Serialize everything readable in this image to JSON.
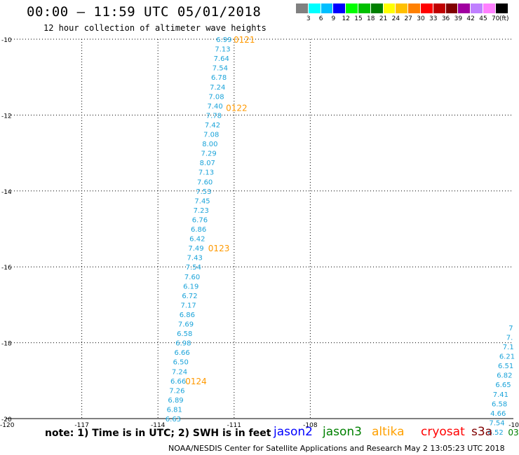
{
  "header": {
    "title": "00:00 – 11:59 UTC 05/01/2018",
    "subtitle": "12 hour collection of altimeter wave heights"
  },
  "colorbar": {
    "unit": "(ft)",
    "labels": [
      "3",
      "6",
      "9",
      "12",
      "15",
      "18",
      "21",
      "24",
      "27",
      "30",
      "33",
      "36",
      "39",
      "42",
      "45",
      "70"
    ],
    "colors": [
      "#808080",
      "#00ffff",
      "#00bfff",
      "#0000ff",
      "#00ff00",
      "#00c000",
      "#008000",
      "#ffff00",
      "#ffc000",
      "#ff8000",
      "#ff0000",
      "#c00000",
      "#800000",
      "#a000a0",
      "#c080ff",
      "#ff80ff",
      "#000000"
    ]
  },
  "footer": {
    "note": "note: 1) Time is in UTC; 2) SWH is in feet",
    "satellites": [
      {
        "name": "jason2",
        "color": "#0000ff"
      },
      {
        "name": "jason3",
        "color": "#008000"
      },
      {
        "name": "altika",
        "color": "#ffa000"
      },
      {
        "name": "cryosat",
        "color": "#ff0000"
      },
      {
        "name": "s3a",
        "color": "#800000"
      }
    ],
    "credit": "NOAA/NESDIS Center for Satellite Applications and Research   May  2 13:05:23 UTC 2018"
  },
  "chart_data": {
    "type": "scatter",
    "xlim": [
      -120,
      -100
    ],
    "ylim": [
      -20,
      -10
    ],
    "x_ticks": [
      "-120",
      "-117",
      "-114",
      "-111",
      "-108",
      "-10"
    ],
    "y_ticks": [
      "-10",
      "-12",
      "-14",
      "-16",
      "-18",
      "-20"
    ],
    "grid": true,
    "value_color": "#1aa3d9",
    "time_color": "#ff9900",
    "series": [
      {
        "name": "altika",
        "points": [
          {
            "lon": -111.4,
            "lat": -10.0,
            "v": "6.99"
          },
          {
            "lon": -111.45,
            "lat": -10.25,
            "v": "7.13"
          },
          {
            "lon": -111.5,
            "lat": -10.5,
            "v": "7.64"
          },
          {
            "lon": -111.55,
            "lat": -10.75,
            "v": "7.54"
          },
          {
            "lon": -111.6,
            "lat": -11.0,
            "v": "6.78"
          },
          {
            "lon": -111.65,
            "lat": -11.25,
            "v": "7.24"
          },
          {
            "lon": -111.7,
            "lat": -11.5,
            "v": "7.08"
          },
          {
            "lon": -111.75,
            "lat": -11.75,
            "v": "7.40"
          },
          {
            "lon": -111.8,
            "lat": -12.0,
            "v": "7.78"
          },
          {
            "lon": -111.85,
            "lat": -12.25,
            "v": "7.42"
          },
          {
            "lon": -111.9,
            "lat": -12.5,
            "v": "7.08"
          },
          {
            "lon": -111.95,
            "lat": -12.75,
            "v": "8.00"
          },
          {
            "lon": -112.0,
            "lat": -13.0,
            "v": "7.29"
          },
          {
            "lon": -112.05,
            "lat": -13.25,
            "v": "8.07"
          },
          {
            "lon": -112.1,
            "lat": -13.5,
            "v": "7.13"
          },
          {
            "lon": -112.15,
            "lat": -13.75,
            "v": "7.60"
          },
          {
            "lon": -112.2,
            "lat": -14.0,
            "v": "7.53"
          },
          {
            "lon": -112.25,
            "lat": -14.25,
            "v": "7.45"
          },
          {
            "lon": -112.3,
            "lat": -14.5,
            "v": "7.23"
          },
          {
            "lon": -112.35,
            "lat": -14.75,
            "v": "6.76"
          },
          {
            "lon": -112.4,
            "lat": -15.0,
            "v": "6.86"
          },
          {
            "lon": -112.45,
            "lat": -15.25,
            "v": "6.42"
          },
          {
            "lon": -112.5,
            "lat": -15.5,
            "v": "7.49"
          },
          {
            "lon": -112.55,
            "lat": -15.75,
            "v": "7.43"
          },
          {
            "lon": -112.6,
            "lat": -16.0,
            "v": "7.54"
          },
          {
            "lon": -112.65,
            "lat": -16.25,
            "v": "7.60"
          },
          {
            "lon": -112.7,
            "lat": -16.5,
            "v": "6.19"
          },
          {
            "lon": -112.75,
            "lat": -16.75,
            "v": "6.72"
          },
          {
            "lon": -112.8,
            "lat": -17.0,
            "v": "7.17"
          },
          {
            "lon": -112.85,
            "lat": -17.25,
            "v": "6.86"
          },
          {
            "lon": -112.9,
            "lat": -17.5,
            "v": "7.69"
          },
          {
            "lon": -112.95,
            "lat": -17.75,
            "v": "6.58"
          },
          {
            "lon": -113.0,
            "lat": -18.0,
            "v": "6.98"
          },
          {
            "lon": -113.05,
            "lat": -18.25,
            "v": "6.66"
          },
          {
            "lon": -113.1,
            "lat": -18.5,
            "v": "6.50"
          },
          {
            "lon": -113.15,
            "lat": -18.75,
            "v": "7.24"
          },
          {
            "lon": -113.2,
            "lat": -19.0,
            "v": "6.66"
          },
          {
            "lon": -113.25,
            "lat": -19.25,
            "v": "7.26"
          },
          {
            "lon": -113.3,
            "lat": -19.5,
            "v": "6.89"
          },
          {
            "lon": -113.35,
            "lat": -19.75,
            "v": "6.81"
          },
          {
            "lon": -113.4,
            "lat": -20.0,
            "v": "6.63"
          }
        ],
        "times": [
          {
            "lon": -110.6,
            "lat": -10.0,
            "t": "0121"
          },
          {
            "lon": -110.9,
            "lat": -11.8,
            "t": "0122"
          },
          {
            "lon": -111.6,
            "lat": -15.5,
            "t": "0123"
          },
          {
            "lon": -112.5,
            "lat": -19.0,
            "t": "0124"
          }
        ]
      },
      {
        "name": "jason3",
        "points": [
          {
            "lon": -100.1,
            "lat": -17.6,
            "v": "7"
          },
          {
            "lon": -100.15,
            "lat": -17.85,
            "v": "7."
          },
          {
            "lon": -100.2,
            "lat": -18.1,
            "v": "7.1"
          },
          {
            "lon": -100.25,
            "lat": -18.35,
            "v": "6.21"
          },
          {
            "lon": -100.3,
            "lat": -18.6,
            "v": "6.51"
          },
          {
            "lon": -100.35,
            "lat": -18.85,
            "v": "6.82"
          },
          {
            "lon": -100.4,
            "lat": -19.1,
            "v": "6.65"
          },
          {
            "lon": -100.5,
            "lat": -19.35,
            "v": "7.41"
          },
          {
            "lon": -100.55,
            "lat": -19.6,
            "v": "6.58"
          },
          {
            "lon": -100.6,
            "lat": -19.85,
            "v": "4.66"
          },
          {
            "lon": -100.65,
            "lat": -20.1,
            "v": "7.54"
          },
          {
            "lon": -100.7,
            "lat": -20.35,
            "v": "6.52"
          }
        ],
        "times": [
          {
            "lon": -100.0,
            "lat": -20.35,
            "t": "03"
          }
        ]
      }
    ]
  }
}
